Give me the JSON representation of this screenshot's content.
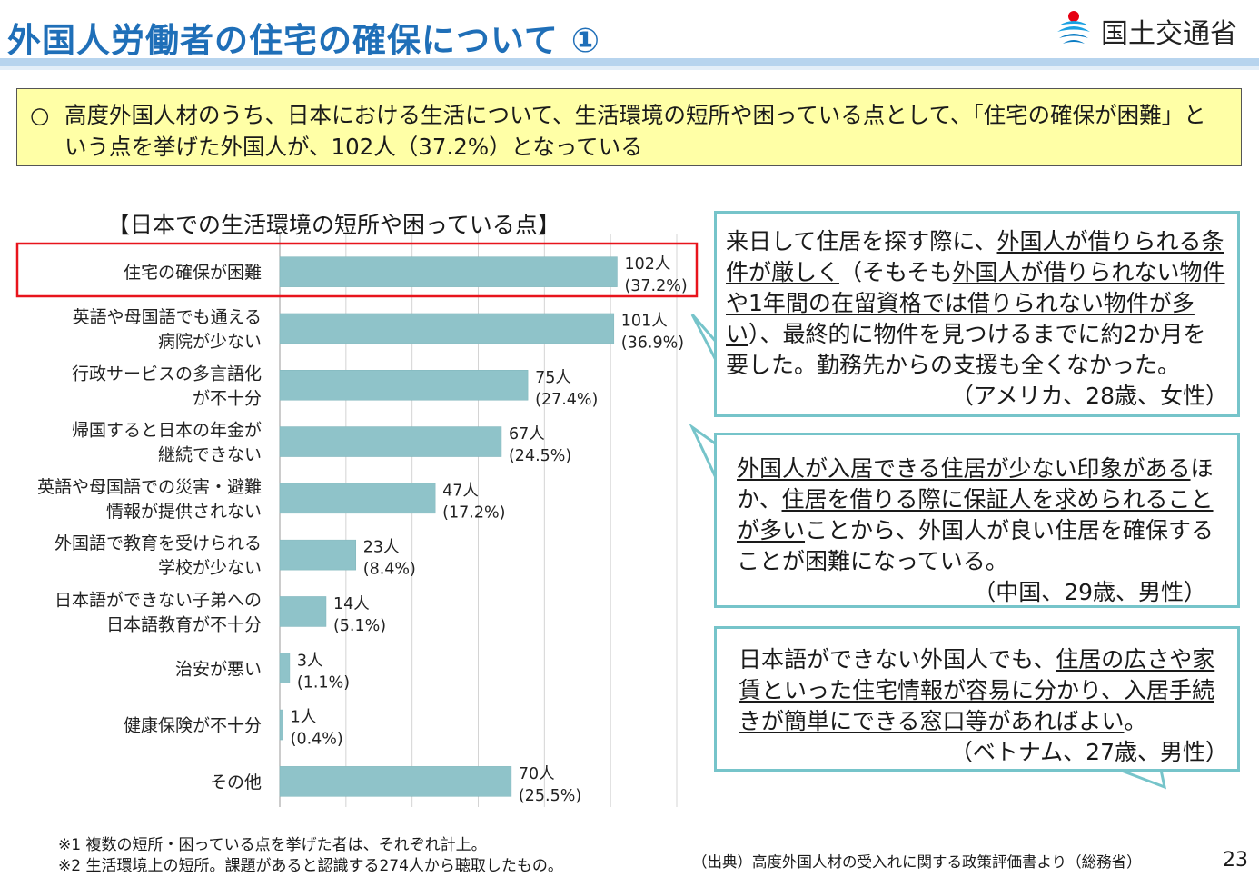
{
  "header": {
    "title": "外国人労働者の住宅の確保について ①",
    "logo_text": "国土交通省",
    "logo_icon": "mlit-logo-icon"
  },
  "summary": {
    "marker": "○",
    "text": "高度外国人材のうち、日本における生活について、生活環境の短所や困っている点として、「住宅の確保が困難」という点を挙げた外国人が、102人（37.2%）となっている"
  },
  "chart_data": {
    "type": "bar",
    "orientation": "horizontal",
    "title": "【日本での生活環境の短所や困っている点】",
    "categories": [
      [
        "住宅の確保が困難"
      ],
      [
        "英語や母国語でも通える",
        "病院が少ない"
      ],
      [
        "行政サービスの多言語化",
        "が不十分"
      ],
      [
        "帰国すると日本の年金が",
        "継続できない"
      ],
      [
        "英語や母国語での災害・避難",
        "情報が提供されない"
      ],
      [
        "外国語で教育を受けられる",
        "学校が少ない"
      ],
      [
        "日本語ができない子弟への",
        "日本語教育が不十分"
      ],
      [
        "治安が悪い"
      ],
      [
        "健康保険が不十分"
      ],
      [
        "その他"
      ]
    ],
    "values": [
      102,
      101,
      75,
      67,
      47,
      23,
      14,
      3,
      1,
      70
    ],
    "count_labels": [
      "102人",
      "101人",
      "75人",
      "67人",
      "47人",
      "23人",
      "14人",
      "3人",
      "1人",
      "70人"
    ],
    "percent_labels": [
      "(37.2%)",
      "(36.9%)",
      "(27.4%)",
      "(24.5%)",
      "(17.2%)",
      "(8.4%)",
      "(5.1%)",
      "(1.1%)",
      "(0.4%)",
      "(25.5%)"
    ],
    "xlim": [
      0,
      120
    ],
    "x_gridlines": [
      0,
      20,
      40,
      60,
      80,
      100,
      120
    ],
    "grid": true,
    "highlighted_category_index": 0,
    "highlight_color": "#e8141c",
    "bar_color": "#8fc3c9"
  },
  "callouts": [
    {
      "segments": [
        {
          "text": "来日して住居を探す際に、",
          "underline": false
        },
        {
          "text": "外国人が借りられる条件が厳しく",
          "underline": true
        },
        {
          "text": "（そもそも",
          "underline": false
        },
        {
          "text": "外国人が借りられない物件や1年間の在留資格では借りられない物件が多い",
          "underline": true
        },
        {
          "text": "）、最終的に物件を見つけるまでに約2か月を要した。勤務先からの支援も全くなかった。",
          "underline": false
        }
      ],
      "attribution": "（アメリカ、28歳、女性）"
    },
    {
      "segments": [
        {
          "text": "外国人が入居できる住居が少ない印象がある",
          "underline": true
        },
        {
          "text": "ほか、",
          "underline": false
        },
        {
          "text": "住居を借りる際に保証人を求められることが多い",
          "underline": true
        },
        {
          "text": "ことから、外国人が良い住居を確保することが困難になっている。",
          "underline": false
        }
      ],
      "attribution": "（中国、29歳、男性）"
    },
    {
      "segments": [
        {
          "text": "日本語ができない外国人でも、",
          "underline": false
        },
        {
          "text": "住居の広さや家賃といった住宅情報が容易に分かり、入居手続きが簡単にできる窓口等があればよい",
          "underline": true
        },
        {
          "text": "。",
          "underline": false
        }
      ],
      "attribution": "（ベトナム、27歳、男性）"
    }
  ],
  "callout_border_color": "#76c4ca",
  "notes": [
    "※1 複数の短所・困っている点を挙げた者は、それぞれ計上。",
    "※2 生活環境上の短所。課題があると認識する274人から聴取したもの。"
  ],
  "source": "（出典）高度外国人材の受入れに関する政策評価書より（総務省）",
  "page_number": "23"
}
